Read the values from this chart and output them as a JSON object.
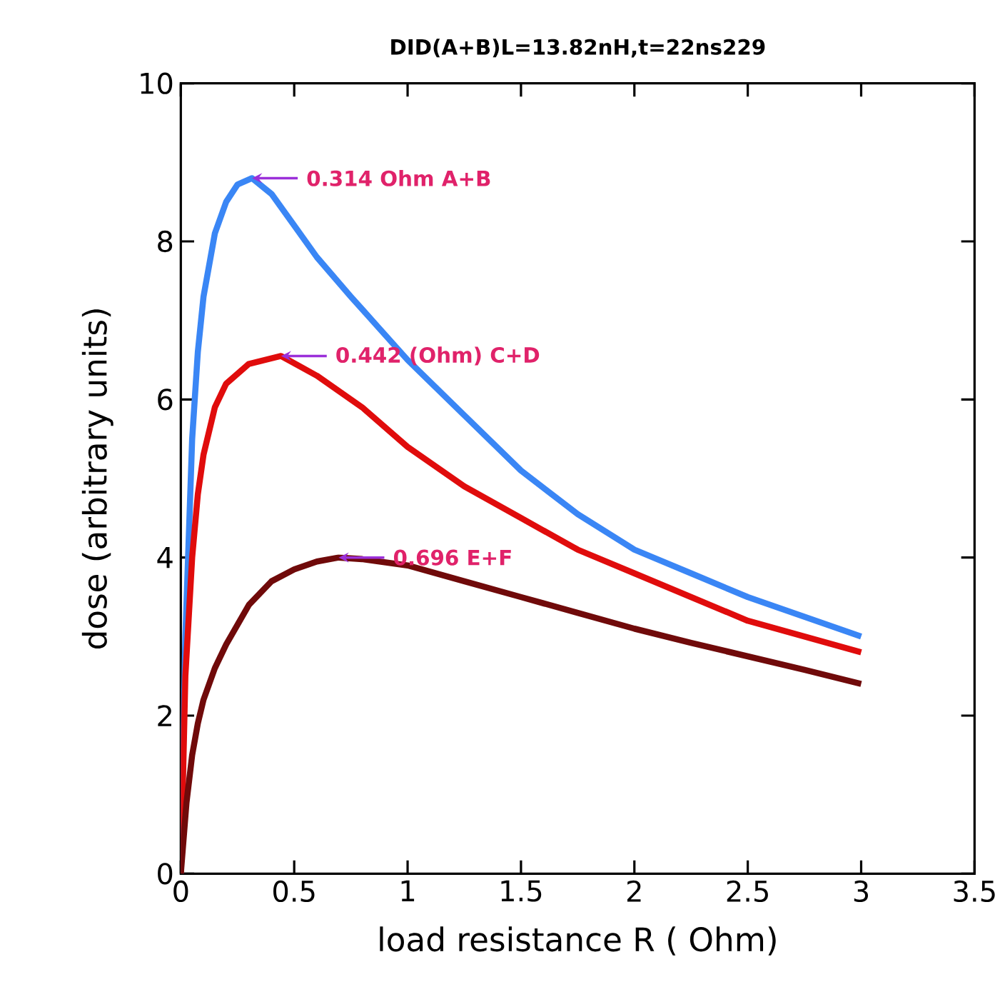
{
  "chart_data": {
    "type": "line",
    "title": "DID(A+B)L=13.82nH,t=22ns229",
    "xlabel": "load resistance R ( Ohm)",
    "ylabel": "dose  (arbitrary units)",
    "xlim": [
      0,
      3.5
    ],
    "ylim": [
      0,
      10
    ],
    "xticks": [
      0,
      0.5,
      1,
      1.5,
      2,
      2.5,
      3,
      3.5
    ],
    "yticks": [
      0,
      2,
      4,
      6,
      8,
      10
    ],
    "marker": "none",
    "line_style": "solid",
    "series": [
      {
        "color": "#3a86f5",
        "x": [
          0,
          0.02,
          0.05,
          0.075,
          0.1,
          0.15,
          0.2,
          0.25,
          0.314,
          0.4,
          0.5,
          0.6,
          0.75,
          0.875,
          1,
          1.25,
          1.5,
          1.75,
          2,
          2.25,
          2.5,
          2.75,
          3
        ],
        "values": [
          0,
          3,
          5.5,
          6.6,
          7.3,
          8.1,
          8.5,
          8.72,
          8.8,
          8.6,
          8.2,
          7.8,
          7.3,
          6.9,
          6.5,
          5.8,
          5.1,
          4.55,
          4.1,
          3.8,
          3.5,
          3.25,
          3.0
        ]
      },
      {
        "color": "#e00c0c",
        "x": [
          0,
          0.02,
          0.05,
          0.075,
          0.1,
          0.15,
          0.2,
          0.3,
          0.442,
          0.6,
          0.8,
          1,
          1.25,
          1.5,
          1.75,
          2,
          2.25,
          2.5,
          2.75,
          3
        ],
        "values": [
          0,
          2.5,
          4,
          4.8,
          5.3,
          5.9,
          6.2,
          6.45,
          6.55,
          6.3,
          5.9,
          5.4,
          4.9,
          4.5,
          4.1,
          3.8,
          3.5,
          3.2,
          3.0,
          2.8
        ]
      },
      {
        "color": "#700a0a",
        "x": [
          0,
          0.025,
          0.05,
          0.075,
          0.1,
          0.15,
          0.2,
          0.3,
          0.4,
          0.5,
          0.6,
          0.696,
          0.8,
          1,
          1.25,
          1.5,
          1.75,
          2,
          2.25,
          2.5,
          2.75,
          3
        ],
        "values": [
          0,
          0.9,
          1.5,
          1.9,
          2.2,
          2.6,
          2.9,
          3.4,
          3.7,
          3.85,
          3.95,
          4.0,
          3.98,
          3.9,
          3.7,
          3.5,
          3.3,
          3.1,
          2.92,
          2.75,
          2.58,
          2.4
        ]
      }
    ],
    "annotations": [
      {
        "text": "0.314 Ohm A+B",
        "x": 0.314,
        "y": 8.8
      },
      {
        "text": "0.442 (Ohm) C+D",
        "x": 0.442,
        "y": 6.55
      },
      {
        "text": "0.696 E+F",
        "x": 0.696,
        "y": 4.0
      }
    ]
  }
}
